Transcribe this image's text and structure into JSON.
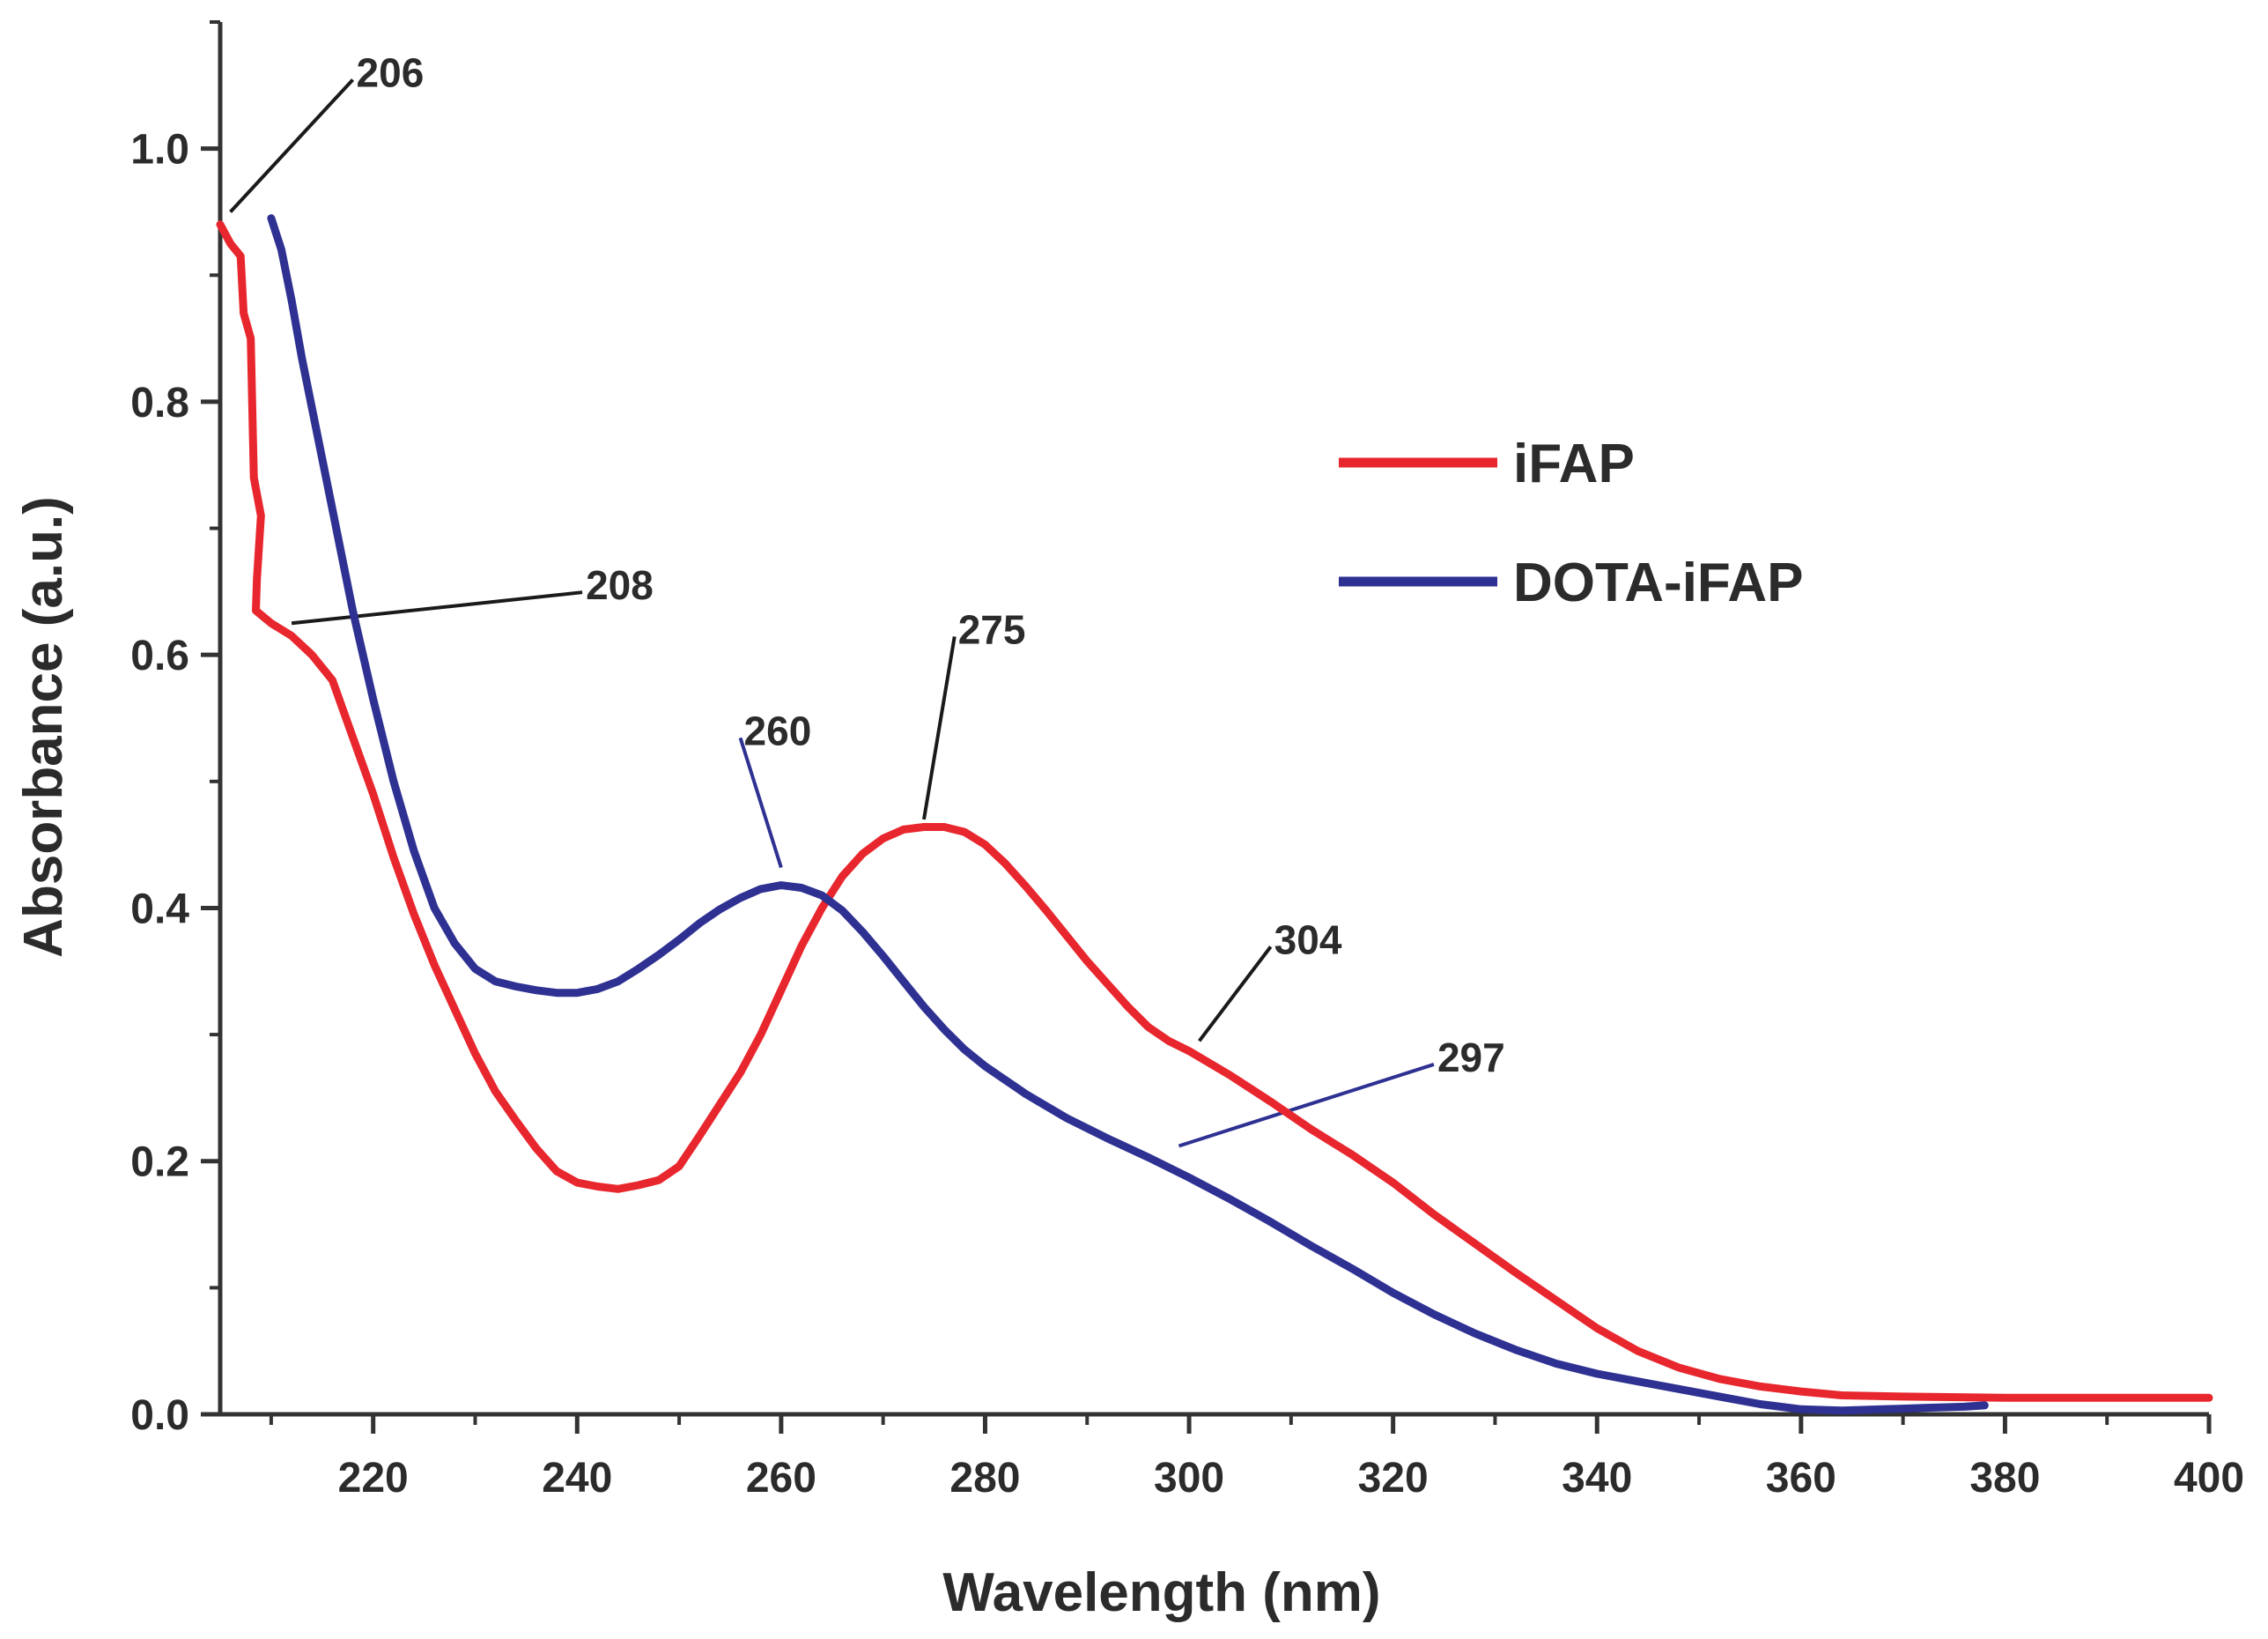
{
  "chart_data": {
    "type": "line",
    "title": "",
    "xlabel": "Wavelength (nm)",
    "ylabel": "Absorbance (a.u.)",
    "xlim": [
      205,
      400
    ],
    "ylim": [
      0.0,
      1.1
    ],
    "x_ticks": [
      220,
      240,
      260,
      280,
      300,
      320,
      340,
      360,
      380,
      400
    ],
    "x_tick_labels": [
      "220",
      "240",
      "260",
      "280",
      "300",
      "320",
      "340",
      "360",
      "380",
      "400"
    ],
    "y_ticks": [
      0.0,
      0.2,
      0.4,
      0.6,
      0.8,
      1.0
    ],
    "y_tick_labels": [
      "0.0",
      "0.2",
      "0.4",
      "0.6",
      "0.8",
      "1.0"
    ],
    "grid": false,
    "legend_position": "right",
    "series": [
      {
        "name": "iFAP",
        "color": "#e8262d",
        "points": [
          [
            205,
            0.94
          ],
          [
            206,
            0.925
          ],
          [
            207,
            0.915
          ],
          [
            207.3,
            0.87
          ],
          [
            208,
            0.85
          ],
          [
            208.3,
            0.74
          ],
          [
            209,
            0.71
          ],
          [
            208.6,
            0.66
          ],
          [
            208.5,
            0.635
          ],
          [
            210,
            0.625
          ],
          [
            212,
            0.615
          ],
          [
            214,
            0.6
          ],
          [
            216,
            0.58
          ],
          [
            218,
            0.535
          ],
          [
            220,
            0.49
          ],
          [
            222,
            0.44
          ],
          [
            224,
            0.395
          ],
          [
            226,
            0.355
          ],
          [
            228,
            0.32
          ],
          [
            230,
            0.285
          ],
          [
            232,
            0.255
          ],
          [
            234,
            0.232
          ],
          [
            236,
            0.21
          ],
          [
            238,
            0.192
          ],
          [
            240,
            0.183
          ],
          [
            242,
            0.18
          ],
          [
            244,
            0.178
          ],
          [
            246,
            0.181
          ],
          [
            248,
            0.185
          ],
          [
            250,
            0.196
          ],
          [
            252,
            0.22
          ],
          [
            254,
            0.245
          ],
          [
            256,
            0.27
          ],
          [
            258,
            0.3
          ],
          [
            260,
            0.335
          ],
          [
            262,
            0.37
          ],
          [
            264,
            0.4
          ],
          [
            266,
            0.425
          ],
          [
            268,
            0.443
          ],
          [
            270,
            0.455
          ],
          [
            272,
            0.462
          ],
          [
            274,
            0.464
          ],
          [
            276,
            0.464
          ],
          [
            278,
            0.46
          ],
          [
            280,
            0.45
          ],
          [
            282,
            0.435
          ],
          [
            284,
            0.417
          ],
          [
            286,
            0.398
          ],
          [
            288,
            0.378
          ],
          [
            290,
            0.358
          ],
          [
            292,
            0.34
          ],
          [
            294,
            0.322
          ],
          [
            296,
            0.306
          ],
          [
            298,
            0.295
          ],
          [
            300,
            0.287
          ],
          [
            304,
            0.268
          ],
          [
            308,
            0.247
          ],
          [
            312,
            0.225
          ],
          [
            316,
            0.205
          ],
          [
            320,
            0.183
          ],
          [
            324,
            0.158
          ],
          [
            328,
            0.135
          ],
          [
            332,
            0.112
          ],
          [
            336,
            0.09
          ],
          [
            340,
            0.068
          ],
          [
            344,
            0.05
          ],
          [
            348,
            0.037
          ],
          [
            352,
            0.028
          ],
          [
            356,
            0.022
          ],
          [
            360,
            0.018
          ],
          [
            364,
            0.015
          ],
          [
            370,
            0.014
          ],
          [
            380,
            0.013
          ],
          [
            390,
            0.013
          ],
          [
            400,
            0.013
          ]
        ]
      },
      {
        "name": "DOTA-iFAP",
        "color": "#2e3192",
        "points": [
          [
            210,
            0.945
          ],
          [
            211,
            0.92
          ],
          [
            212,
            0.88
          ],
          [
            213,
            0.835
          ],
          [
            214,
            0.795
          ],
          [
            216,
            0.715
          ],
          [
            218,
            0.635
          ],
          [
            220,
            0.565
          ],
          [
            222,
            0.5
          ],
          [
            224,
            0.445
          ],
          [
            226,
            0.4
          ],
          [
            228,
            0.372
          ],
          [
            230,
            0.352
          ],
          [
            232,
            0.342
          ],
          [
            234,
            0.338
          ],
          [
            236,
            0.335
          ],
          [
            238,
            0.333
          ],
          [
            240,
            0.333
          ],
          [
            242,
            0.336
          ],
          [
            244,
            0.342
          ],
          [
            246,
            0.352
          ],
          [
            248,
            0.363
          ],
          [
            250,
            0.375
          ],
          [
            252,
            0.388
          ],
          [
            254,
            0.399
          ],
          [
            256,
            0.408
          ],
          [
            258,
            0.415
          ],
          [
            260,
            0.418
          ],
          [
            262,
            0.416
          ],
          [
            264,
            0.41
          ],
          [
            266,
            0.398
          ],
          [
            268,
            0.381
          ],
          [
            270,
            0.362
          ],
          [
            272,
            0.342
          ],
          [
            274,
            0.322
          ],
          [
            276,
            0.304
          ],
          [
            278,
            0.288
          ],
          [
            280,
            0.275
          ],
          [
            284,
            0.253
          ],
          [
            288,
            0.234
          ],
          [
            292,
            0.218
          ],
          [
            296,
            0.203
          ],
          [
            300,
            0.187
          ],
          [
            304,
            0.17
          ],
          [
            308,
            0.152
          ],
          [
            312,
            0.133
          ],
          [
            316,
            0.115
          ],
          [
            320,
            0.096
          ],
          [
            324,
            0.079
          ],
          [
            328,
            0.064
          ],
          [
            332,
            0.051
          ],
          [
            336,
            0.04
          ],
          [
            340,
            0.032
          ],
          [
            344,
            0.026
          ],
          [
            348,
            0.02
          ],
          [
            352,
            0.014
          ],
          [
            356,
            0.008
          ],
          [
            360,
            0.004
          ],
          [
            364,
            0.003
          ],
          [
            368,
            0.004
          ],
          [
            372,
            0.005
          ],
          [
            376,
            0.006
          ],
          [
            378,
            0.007
          ]
        ]
      }
    ],
    "annotations": [
      {
        "text": "206",
        "x": 206,
        "y": 0.95,
        "label_x": 218,
        "label_y": 1.06,
        "color": "#1a1a1a"
      },
      {
        "text": "208",
        "x": 212,
        "y": 0.625,
        "label_x": 240.5,
        "label_y": 0.655,
        "color": "#1a1a1a"
      },
      {
        "text": "260",
        "x": 260,
        "y": 0.432,
        "label_x": 256,
        "label_y": 0.54,
        "color": "#2e3192"
      },
      {
        "text": "275",
        "x": 274,
        "y": 0.47,
        "label_x": 277,
        "label_y": 0.62,
        "color": "#1a1a1a"
      },
      {
        "text": "304",
        "x": 301,
        "y": 0.295,
        "label_x": 308,
        "label_y": 0.375,
        "color": "#1a1a1a"
      },
      {
        "text": "297",
        "x": 299,
        "y": 0.212,
        "label_x": 324,
        "label_y": 0.282,
        "color": "#2e3192"
      }
    ]
  }
}
